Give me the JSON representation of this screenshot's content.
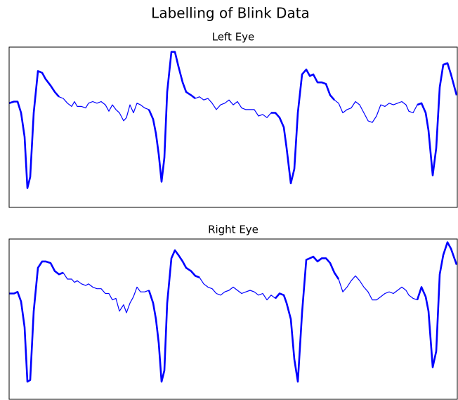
{
  "chart_data": [
    {
      "type": "line",
      "title": "Labelling of Blink Data",
      "subtitle": "Left Eye",
      "color": "#0000ff",
      "xlim": [
        0,
        638
      ],
      "ylim": [
        0,
        100
      ],
      "x": [
        0,
        7,
        12,
        17,
        22,
        26,
        30,
        35,
        41,
        47,
        52,
        59,
        65,
        71,
        77,
        83,
        89,
        93,
        97,
        103,
        109,
        113,
        119,
        125,
        131,
        137,
        142,
        147,
        152,
        157,
        163,
        167,
        172,
        177,
        182,
        187,
        193,
        199,
        205,
        209,
        213,
        217,
        221,
        225,
        231,
        236,
        241,
        247,
        252,
        259,
        265,
        271,
        277,
        283,
        289,
        295,
        301,
        307,
        313,
        319,
        325,
        331,
        337,
        343,
        349,
        355,
        361,
        367,
        373,
        379,
        385,
        391,
        395,
        401,
        406,
        411,
        417,
        423,
        428,
        433,
        439,
        445,
        451,
        457,
        463,
        469,
        475,
        481,
        487,
        493,
        499,
        505,
        511,
        517,
        523,
        529,
        535,
        541,
        547,
        553,
        559,
        565,
        569,
        575,
        581,
        587,
        593,
        597,
        603,
        608,
        613,
        618,
        624,
        629,
        637
      ],
      "values": [
        65,
        66,
        66,
        59,
        44,
        12,
        19,
        59,
        85,
        84,
        80,
        76,
        72,
        69,
        68,
        65,
        63,
        66,
        63,
        63,
        62,
        65,
        66,
        65,
        66,
        64,
        60,
        64,
        61,
        59,
        54,
        56,
        64,
        59,
        65,
        64,
        62,
        61,
        55,
        46,
        33,
        16,
        31,
        72,
        97,
        97,
        88,
        78,
        72,
        70,
        68,
        69,
        67,
        68,
        65,
        61,
        64,
        65,
        67,
        64,
        66,
        62,
        61,
        61,
        61,
        57,
        58,
        56,
        59,
        59,
        56,
        50,
        37,
        15,
        24,
        59,
        83,
        86,
        82,
        83,
        78,
        78,
        77,
        70,
        67,
        65,
        59,
        61,
        62,
        66,
        64,
        59,
        54,
        53,
        57,
        64,
        63,
        65,
        64,
        65,
        66,
        64,
        60,
        59,
        64,
        65,
        59,
        48,
        20,
        37,
        75,
        89,
        90,
        83,
        70
      ],
      "thick_segments": [
        [
          0,
          13
        ],
        [
          37,
          50
        ],
        [
          68,
          84
        ],
        [
          104,
          114
        ]
      ]
    },
    {
      "type": "line",
      "subtitle": "Right Eye",
      "color": "#0000ff",
      "xlim": [
        0,
        638
      ],
      "ylim": [
        0,
        100
      ],
      "x": [
        0,
        7,
        12,
        17,
        22,
        26,
        30,
        35,
        41,
        47,
        52,
        59,
        65,
        71,
        77,
        83,
        89,
        93,
        97,
        103,
        109,
        113,
        119,
        125,
        131,
        137,
        142,
        147,
        152,
        157,
        163,
        167,
        172,
        177,
        182,
        187,
        193,
        199,
        205,
        209,
        213,
        217,
        221,
        225,
        231,
        236,
        241,
        247,
        252,
        259,
        265,
        271,
        277,
        283,
        289,
        295,
        301,
        307,
        313,
        319,
        325,
        331,
        337,
        343,
        349,
        355,
        361,
        367,
        373,
        379,
        385,
        391,
        395,
        401,
        406,
        411,
        417,
        423,
        428,
        433,
        439,
        445,
        451,
        457,
        463,
        469,
        475,
        481,
        487,
        493,
        499,
        505,
        511,
        517,
        523,
        529,
        535,
        541,
        547,
        553,
        559,
        565,
        569,
        575,
        581,
        587,
        593,
        597,
        603,
        608,
        613,
        618,
        624,
        629,
        637
      ],
      "values": [
        66,
        66,
        67,
        61,
        45,
        11,
        12,
        55,
        82,
        86,
        86,
        85,
        80,
        78,
        79,
        75,
        75,
        73,
        74,
        72,
        71,
        72,
        70,
        69,
        69,
        66,
        66,
        62,
        63,
        55,
        59,
        54,
        60,
        64,
        70,
        67,
        67,
        68,
        60,
        50,
        35,
        11,
        18,
        60,
        88,
        93,
        90,
        86,
        82,
        80,
        77,
        76,
        72,
        70,
        69,
        66,
        65,
        67,
        68,
        70,
        68,
        66,
        67,
        68,
        67,
        65,
        66,
        62,
        65,
        63,
        66,
        65,
        60,
        50,
        25,
        11,
        54,
        87,
        88,
        89,
        86,
        88,
        88,
        85,
        79,
        75,
        67,
        70,
        74,
        77,
        74,
        70,
        67,
        62,
        62,
        64,
        66,
        67,
        66,
        68,
        70,
        68,
        65,
        63,
        62,
        70,
        64,
        55,
        20,
        30,
        78,
        90,
        98,
        94,
        84
      ],
      "thick_segments": [
        [
          0,
          14
        ],
        [
          37,
          51
        ],
        [
          69,
          85
        ],
        [
          104,
          114
        ]
      ]
    }
  ]
}
